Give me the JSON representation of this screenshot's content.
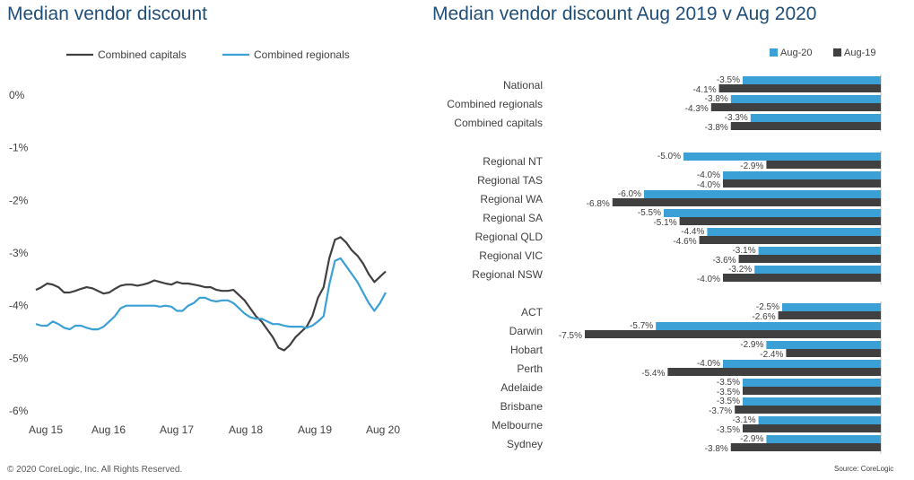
{
  "footer": {
    "copyright": "© 2020 CoreLogic, Inc. All Rights Reserved.",
    "source": "Source: CoreLogic"
  },
  "colors": {
    "capitals": "#404040",
    "regionals": "#3aa0d6",
    "aug20": "#3aa0d6",
    "aug19": "#404040"
  },
  "chart_data": [
    {
      "type": "line",
      "title": "Median vendor discount",
      "y_ticks": [
        "0%",
        "-1%",
        "-2%",
        "-3%",
        "-4%",
        "-5%",
        "-6%"
      ],
      "ylim": [
        -6,
        0
      ],
      "x_ticks": [
        "Aug 15",
        "Aug 16",
        "Aug 17",
        "Aug 18",
        "Aug 19",
        "Aug 20"
      ],
      "legend": "top",
      "grid": false,
      "series": [
        {
          "name": "Combined capitals",
          "values": [
            -3.7,
            -3.65,
            -3.58,
            -3.6,
            -3.65,
            -3.75,
            -3.75,
            -3.72,
            -3.68,
            -3.65,
            -3.67,
            -3.72,
            -3.77,
            -3.75,
            -3.68,
            -3.62,
            -3.6,
            -3.6,
            -3.62,
            -3.6,
            -3.57,
            -3.52,
            -3.55,
            -3.58,
            -3.6,
            -3.55,
            -3.58,
            -3.58,
            -3.6,
            -3.62,
            -3.65,
            -3.65,
            -3.7,
            -3.72,
            -3.72,
            -3.7,
            -3.8,
            -3.9,
            -4.05,
            -4.2,
            -4.3,
            -4.45,
            -4.6,
            -4.8,
            -4.85,
            -4.75,
            -4.6,
            -4.5,
            -4.4,
            -4.2,
            -3.85,
            -3.65,
            -3.1,
            -2.75,
            -2.7,
            -2.8,
            -2.95,
            -3.05,
            -3.2,
            -3.4,
            -3.55,
            -3.45,
            -3.35
          ]
        },
        {
          "name": "Combined regionals",
          "values": [
            -4.35,
            -4.38,
            -4.38,
            -4.3,
            -4.35,
            -4.42,
            -4.45,
            -4.38,
            -4.38,
            -4.42,
            -4.45,
            -4.45,
            -4.4,
            -4.3,
            -4.2,
            -4.05,
            -4.0,
            -4.0,
            -4.0,
            -4.0,
            -4.0,
            -4.0,
            -4.02,
            -4.0,
            -4.02,
            -4.1,
            -4.1,
            -4.0,
            -3.95,
            -3.85,
            -3.85,
            -3.9,
            -3.92,
            -3.9,
            -3.9,
            -3.95,
            -4.05,
            -4.15,
            -4.22,
            -4.25,
            -4.25,
            -4.3,
            -4.35,
            -4.35,
            -4.38,
            -4.4,
            -4.4,
            -4.4,
            -4.42,
            -4.38,
            -4.3,
            -4.2,
            -3.6,
            -3.15,
            -3.1,
            -3.25,
            -3.4,
            -3.55,
            -3.75,
            -3.95,
            -4.1,
            -3.95,
            -3.75
          ]
        }
      ]
    },
    {
      "type": "bar",
      "orientation": "horizontal",
      "title": "Median vendor discount Aug 2019 v Aug 2020",
      "legend": "top-right",
      "groups": [
        {
          "categories": [
            "National",
            "Combined regionals",
            "Combined capitals"
          ],
          "aug20": [
            -3.5,
            -3.8,
            -3.3
          ],
          "aug19": [
            -4.1,
            -4.3,
            -3.8
          ]
        },
        {
          "categories": [
            "Regional NT",
            "Regional TAS",
            "Regional WA",
            "Regional SA",
            "Regional QLD",
            "Regional VIC",
            "Regional NSW"
          ],
          "aug20": [
            -5.0,
            -4.0,
            -6.0,
            -5.5,
            -4.4,
            -3.1,
            -3.2
          ],
          "aug19": [
            -2.9,
            -4.0,
            -6.8,
            -5.1,
            -4.6,
            -3.6,
            -4.0
          ]
        },
        {
          "categories": [
            "ACT",
            "Darwin",
            "Hobart",
            "Perth",
            "Adelaide",
            "Brisbane",
            "Melbourne",
            "Sydney"
          ],
          "aug20": [
            -2.5,
            -5.7,
            -2.9,
            -4.0,
            -3.5,
            -3.5,
            -3.1,
            -2.9
          ],
          "aug19": [
            -2.6,
            -7.5,
            -2.4,
            -5.4,
            -3.5,
            -3.7,
            -3.5,
            -3.8
          ]
        }
      ],
      "series": [
        {
          "name": "Aug-20"
        },
        {
          "name": "Aug-19"
        }
      ],
      "value_format": "%"
    }
  ]
}
